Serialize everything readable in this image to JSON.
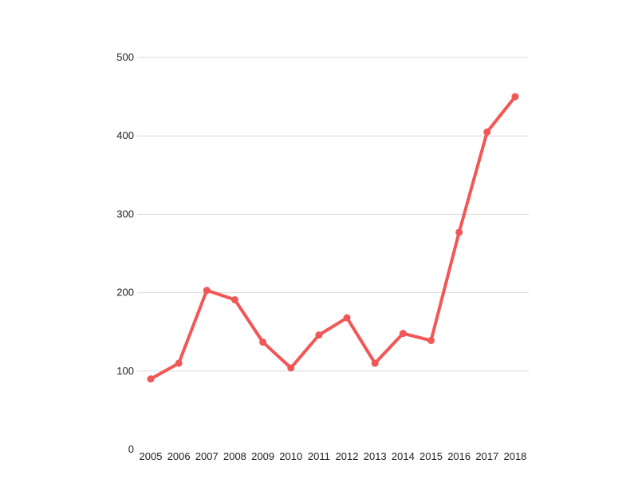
{
  "chart_data": {
    "type": "line",
    "title": "",
    "xlabel": "",
    "ylabel": "",
    "categories": [
      "2005",
      "2006",
      "2007",
      "2008",
      "2009",
      "2010",
      "2011",
      "2012",
      "2013",
      "2014",
      "2015",
      "2016",
      "2017",
      "2018"
    ],
    "series": [
      {
        "values": [
          90,
          110,
          203,
          191,
          137,
          104,
          146,
          168,
          110,
          148,
          139,
          277,
          405,
          450
        ]
      }
    ],
    "ylim": [
      0,
      500
    ],
    "yticks": [
      "0",
      "100",
      "200",
      "300",
      "400",
      "500"
    ],
    "grid": true,
    "legend": "none",
    "colors": {
      "line": "#f25757",
      "grid": "#d9d9d9",
      "text": "#222222"
    }
  }
}
